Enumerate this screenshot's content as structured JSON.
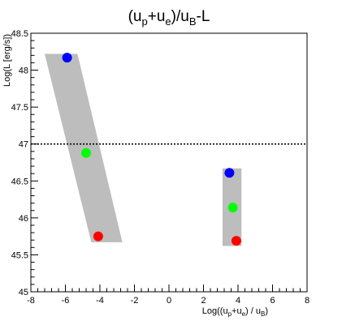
{
  "chart_data": {
    "type": "scatter",
    "title": "(u_p+u_e)/u_B-L",
    "title_parts": {
      "open": "(u",
      "p": "p",
      "plus": "+u",
      "e": "e",
      "mid": ")/u",
      "B": "B",
      "end": "-L"
    },
    "xlabel": "Log((u_p+u_e) / u_B)",
    "xlabel_parts": {
      "open": "Log((u",
      "p": "p",
      "plus": "+u",
      "e": "e",
      "mid": ") / u",
      "B": "B",
      "end": ")"
    },
    "ylabel": "Log(L [erg/s])",
    "xlim": [
      -8,
      8
    ],
    "ylim": [
      45,
      48.5
    ],
    "x_ticks": [
      "-8",
      "-6",
      "-4",
      "-2",
      "0",
      "2",
      "4",
      "6",
      "8"
    ],
    "y_ticks": [
      "45",
      "45.5",
      "46",
      "46.5",
      "47",
      "47.5",
      "48",
      "48.5"
    ],
    "grid": false,
    "reference_line": {
      "y": 47,
      "style": "dotted",
      "color": "#000000"
    },
    "bands": [
      {
        "color": "#bdbdbd",
        "points": [
          [
            -7.2,
            48.22
          ],
          [
            -5.3,
            48.22
          ],
          [
            -2.7,
            45.67
          ],
          [
            -4.5,
            45.67
          ]
        ]
      },
      {
        "color": "#bdbdbd",
        "points": [
          [
            3.1,
            46.67
          ],
          [
            4.2,
            46.67
          ],
          [
            4.2,
            45.62
          ],
          [
            3.1,
            45.62
          ]
        ]
      }
    ],
    "points": [
      {
        "x": -5.9,
        "y": 48.17,
        "color": "#0000ff"
      },
      {
        "x": -4.8,
        "y": 46.88,
        "color": "#00ff00"
      },
      {
        "x": -4.1,
        "y": 45.75,
        "color": "#ff0000"
      },
      {
        "x": 3.5,
        "y": 46.61,
        "color": "#0000ff"
      },
      {
        "x": 3.7,
        "y": 46.14,
        "color": "#00ff00"
      },
      {
        "x": 3.9,
        "y": 45.69,
        "color": "#ff0000"
      }
    ]
  }
}
